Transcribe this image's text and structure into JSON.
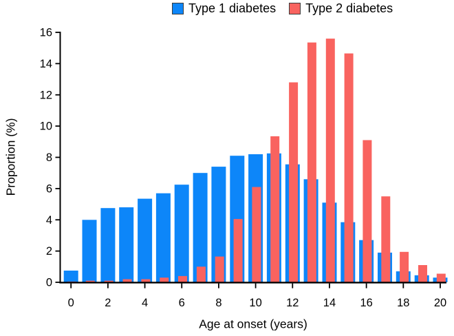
{
  "figure": {
    "background": "#ffffff",
    "axis_color": "#000000",
    "text_color": "#000000",
    "swatch_border_color": "#3a3a3a"
  },
  "chart_data": {
    "type": "bar",
    "title": "",
    "xlabel": "Age at onset (years)",
    "ylabel": "Proportion (%)",
    "categories": [
      0,
      1,
      2,
      3,
      4,
      5,
      6,
      7,
      8,
      9,
      10,
      11,
      12,
      13,
      14,
      15,
      16,
      17,
      18,
      19,
      20
    ],
    "series": [
      {
        "name": "Type 1 diabetes",
        "color": "#0d86f9",
        "values": [
          0.75,
          4.0,
          4.75,
          4.8,
          5.35,
          5.7,
          6.25,
          7.0,
          7.4,
          8.1,
          8.2,
          8.25,
          7.55,
          6.6,
          5.1,
          3.85,
          2.7,
          1.9,
          0.7,
          0.45,
          0.3
        ]
      },
      {
        "name": "Type 2 diabetes",
        "color": "#f9635f",
        "values": [
          0.05,
          0.1,
          0.1,
          0.2,
          0.2,
          0.3,
          0.4,
          1.0,
          1.65,
          4.05,
          6.1,
          9.35,
          12.8,
          15.35,
          15.6,
          14.65,
          9.1,
          5.5,
          1.95,
          1.1,
          0.55
        ]
      }
    ],
    "ylim": [
      0,
      16
    ],
    "y_ticks": [
      0,
      2,
      4,
      6,
      8,
      10,
      12,
      14,
      16
    ],
    "x_ticks": [
      0,
      2,
      4,
      6,
      8,
      10,
      12,
      14,
      16,
      18,
      20
    ],
    "grid": false,
    "legend_position": "top"
  }
}
